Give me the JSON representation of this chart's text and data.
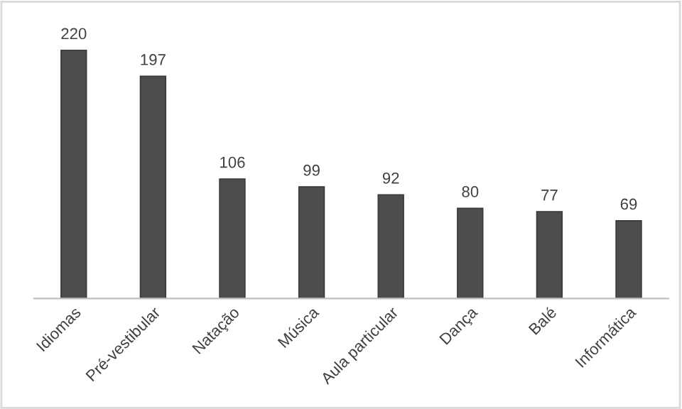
{
  "chart_data": {
    "type": "bar",
    "categories": [
      "Idiomas",
      "Pré-vestibular",
      "Natação",
      "Música",
      "Aula particular",
      "Dança",
      "Balé",
      "Informática"
    ],
    "values": [
      220,
      197,
      106,
      99,
      92,
      80,
      77,
      69
    ],
    "color": "#4d4d4d",
    "data_labels": true
  }
}
